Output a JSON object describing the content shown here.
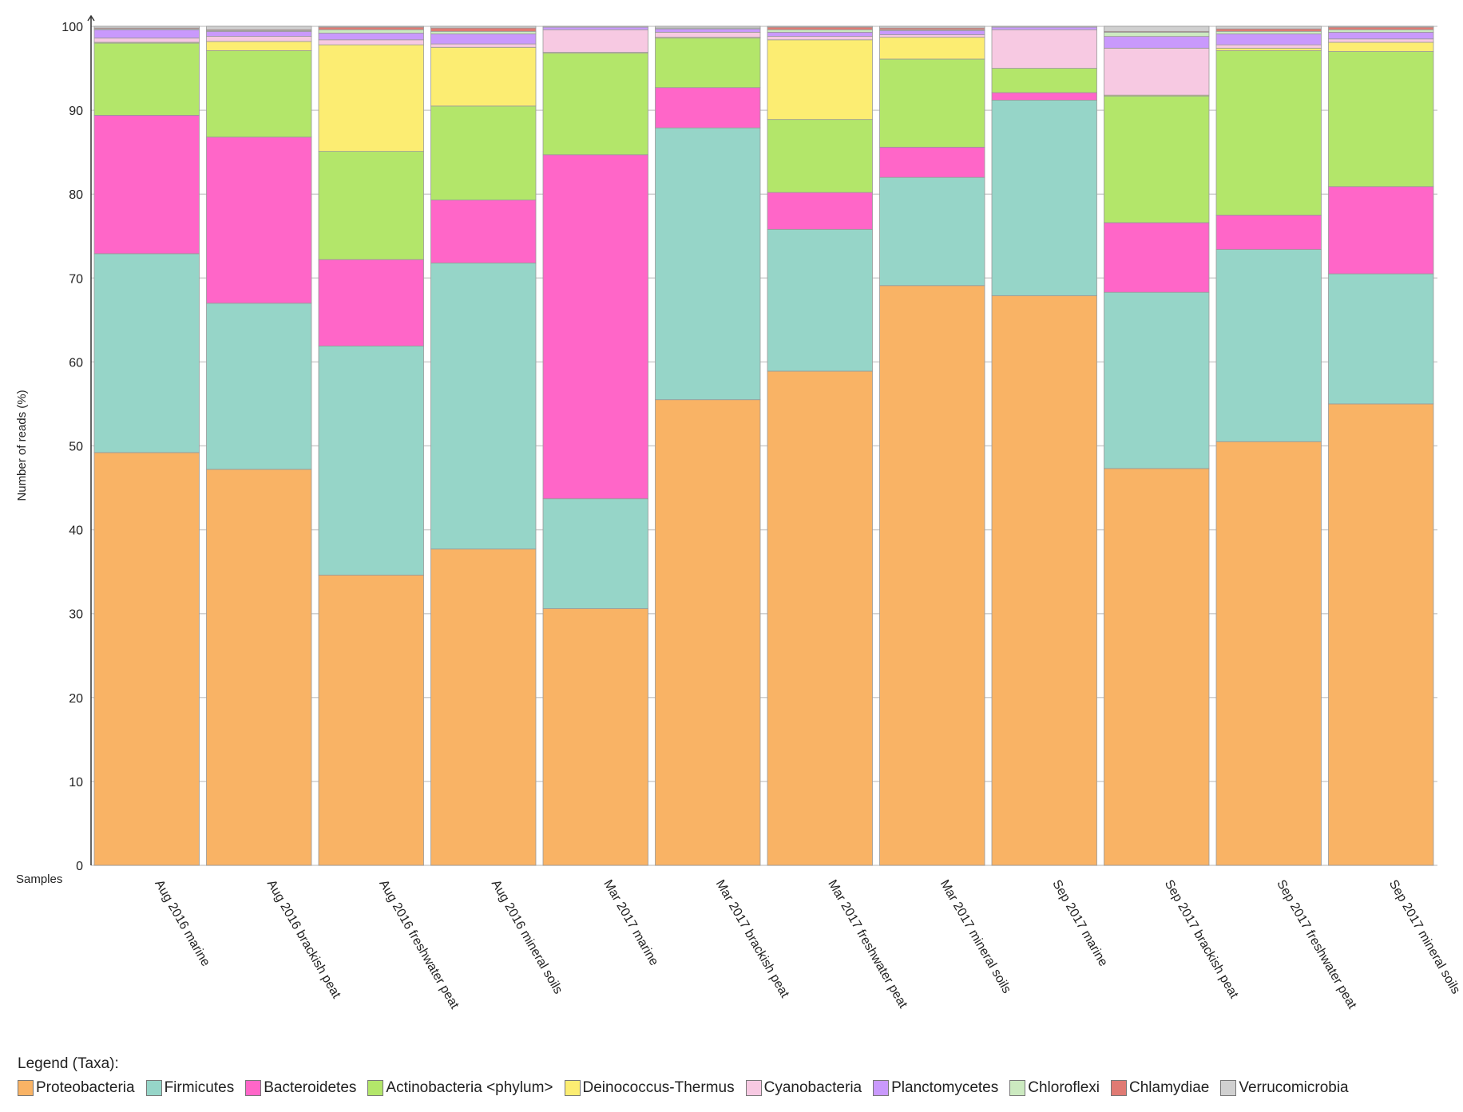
{
  "chart_data": {
    "type": "bar",
    "stacked": true,
    "title": "",
    "xlabel": "Samples",
    "ylabel": "Number of reads (%)",
    "ylim": [
      0,
      100
    ],
    "yticks": [
      0,
      10,
      20,
      30,
      40,
      50,
      60,
      70,
      80,
      90,
      100
    ],
    "grid": true,
    "legend_title": "Legend (Taxa):",
    "legend_position": "bottom",
    "categories": [
      "Aug 2016 marine",
      "Aug 2016 brackish peat",
      "Aug 2016 freshwater peat",
      "Aug 2016 mineral soils",
      "Mar 2017 marine",
      "Mar 2017 brackish peat",
      "Mar 2017 freshwater peat",
      "Mar 2017 mineral soils",
      "Sep 2017 marine",
      "Sep 2017 brackish peat",
      "Sep 2017 freshwater peat",
      "Sep 2017 mineral soils"
    ],
    "series": [
      {
        "name": "Proteobacteria",
        "color": "#f9b365",
        "values": [
          49.2,
          47.2,
          34.6,
          37.7,
          30.6,
          55.5,
          58.9,
          69.1,
          67.9,
          47.3,
          50.5,
          55.0
        ]
      },
      {
        "name": "Firmicutes",
        "color": "#96d5c8",
        "values": [
          23.7,
          19.8,
          27.3,
          34.1,
          13.1,
          32.4,
          16.9,
          12.9,
          23.3,
          21.0,
          22.9,
          15.5
        ]
      },
      {
        "name": "Bacteroidetes",
        "color": "#ff66c8",
        "values": [
          16.5,
          19.8,
          10.3,
          7.5,
          41.0,
          4.8,
          4.4,
          3.6,
          0.9,
          8.3,
          4.1,
          10.4
        ]
      },
      {
        "name": "Actinobacteria <phylum>",
        "color": "#b3e66a",
        "values": [
          8.6,
          10.3,
          12.9,
          11.2,
          12.1,
          5.9,
          8.7,
          10.5,
          2.9,
          15.1,
          19.6,
          16.1
        ]
      },
      {
        "name": "Deinococcus-Thermus",
        "color": "#fced72",
        "values": [
          0.1,
          1.1,
          12.7,
          7.0,
          0.1,
          0.1,
          9.5,
          2.6,
          0.0,
          0.1,
          0.3,
          1.1
        ]
      },
      {
        "name": "Cyanobacteria",
        "color": "#f7c9e2",
        "values": [
          0.5,
          0.6,
          0.6,
          0.4,
          2.7,
          0.6,
          0.4,
          0.3,
          4.6,
          5.6,
          0.4,
          0.4
        ]
      },
      {
        "name": "Planctomycetes",
        "color": "#c999fc",
        "values": [
          1.0,
          0.6,
          0.8,
          1.2,
          0.3,
          0.4,
          0.5,
          0.5,
          0.3,
          1.4,
          1.3,
          0.8
        ]
      },
      {
        "name": "Chloroflexi",
        "color": "#cceac0",
        "values": [
          0.1,
          0.1,
          0.4,
          0.3,
          0.0,
          0.1,
          0.3,
          0.1,
          0.0,
          0.5,
          0.3,
          0.3
        ]
      },
      {
        "name": "Chlamydiae",
        "color": "#e07a73",
        "values": [
          0.1,
          0.1,
          0.3,
          0.4,
          0.0,
          0.0,
          0.3,
          0.2,
          0.0,
          0.1,
          0.3,
          0.3
        ]
      },
      {
        "name": "Verrucomicrobia",
        "color": "#d0d0d0",
        "values": [
          0.2,
          0.4,
          0.1,
          0.2,
          0.1,
          0.2,
          0.1,
          0.2,
          0.1,
          0.6,
          0.3,
          0.1
        ]
      }
    ]
  }
}
